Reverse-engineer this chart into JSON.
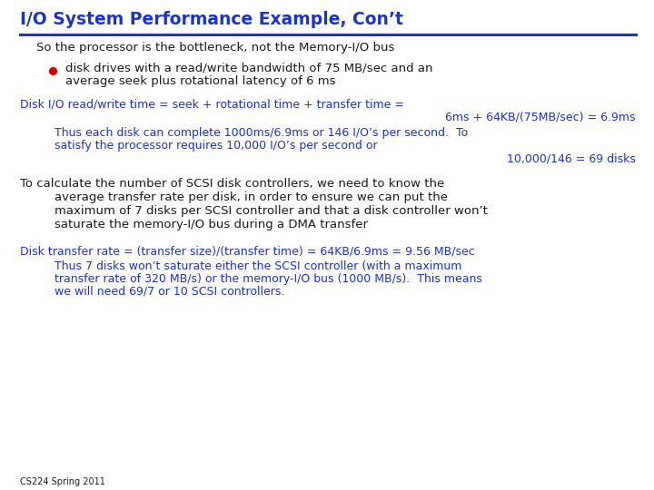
{
  "title": "I/O System Performance Example, Con’t",
  "title_color": "#1a33cc",
  "background_color": "#ffffff",
  "text_color_black": "#1a1a1a",
  "text_color_blue": "#1a33cc",
  "bullet_color": "#cc0000",
  "line1": "So the processor is the bottleneck, not the Memory-I/O bus",
  "bullet1a": "disk drives with a read/write bandwidth of 75 MB/sec and an",
  "bullet1b": "average seek plus rotational latency of 6 ms",
  "line2a": "Disk I/O read/write time = seek + rotational time + transfer time =",
  "line2b": "6ms + 64KB/(75MB/sec) = 6.9ms",
  "line3a": "Thus each disk can complete 1000ms/6.9ms or 146 I/O’s per second.  To",
  "line3b": "satisfy the processor requires 10,000 I/O’s per second or",
  "line3c": "10,000/146 = 69 disks",
  "line4a": "To calculate the number of SCSI disk controllers, we need to know the",
  "line4b": "average transfer rate per disk, in order to ensure we can put the",
  "line4c": "maximum of 7 disks per SCSI controller and that a disk controller won’t",
  "line4d": "saturate the memory-I/O bus during a DMA transfer",
  "line5": "Disk transfer rate = (transfer size)/(transfer time) = 64KB/6.9ms = 9.56 MB/sec",
  "line6a": "Thus 7 disks won’t saturate either the SCSI controller (with a maximum",
  "line6b": "transfer rate of 320 MB/s) or the memory-I/O bus (1000 MB/s).  This means",
  "line6c": "we will need 69/7 or 10 SCSI controllers.",
  "footer": "CS224 Spring 2011"
}
